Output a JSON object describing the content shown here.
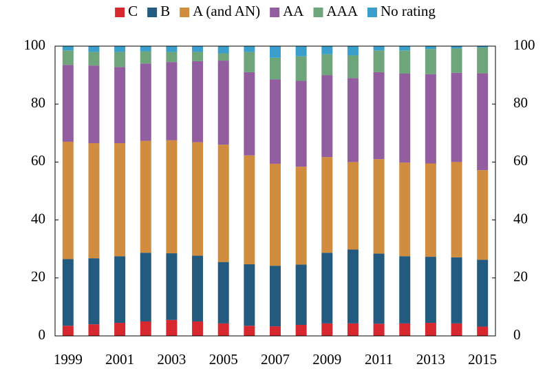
{
  "chart_data": {
    "type": "stacked_bar",
    "categories": [
      "1999",
      null,
      "2001",
      null,
      "2003",
      null,
      "2005",
      null,
      "2007",
      null,
      "2009",
      null,
      "2011",
      null,
      "2013",
      null,
      "2015"
    ],
    "series": [
      {
        "name": "C",
        "color": "#d7282f",
        "values": [
          3.5,
          4,
          4.5,
          5,
          5.5,
          5,
          4.3,
          3.5,
          3.3,
          3.8,
          4.3,
          4.3,
          4.2,
          4.3,
          4.5,
          4.3,
          3.2
        ]
      },
      {
        "name": "B",
        "color": "#225b7f",
        "values": [
          23,
          22.8,
          23,
          23.7,
          23,
          22.7,
          21.2,
          21.2,
          20.9,
          20.8,
          24.4,
          25.5,
          24.2,
          23.2,
          22.8,
          22.8,
          23.1
        ]
      },
      {
        "name": "A (and AN)",
        "color": "#d08c3f",
        "values": [
          40.5,
          39.7,
          39,
          38.6,
          39,
          39.1,
          40.5,
          37.6,
          35.2,
          33.8,
          33,
          30.2,
          32.6,
          32.3,
          32.2,
          32.9,
          30.9
        ]
      },
      {
        "name": "AA",
        "color": "#925e9f",
        "values": [
          26.5,
          26.8,
          26.3,
          26.7,
          27,
          28,
          29,
          28.7,
          29.1,
          29.6,
          28.3,
          29,
          30,
          30.7,
          30.8,
          30.8,
          33.4
        ]
      },
      {
        "name": "AAA",
        "color": "#6ea57b",
        "values": [
          5,
          4.7,
          5.2,
          4.2,
          3.5,
          3.2,
          2.5,
          7,
          7.5,
          8.5,
          7.2,
          7.8,
          7.5,
          8,
          8.7,
          8.4,
          8.9
        ]
      },
      {
        "name": "No rating",
        "color": "#3a9fcc",
        "values": [
          1.5,
          2,
          2,
          1.8,
          2,
          2,
          2.5,
          2,
          4,
          3.5,
          2.8,
          3.2,
          1.5,
          1.5,
          1,
          0.8,
          0.5
        ]
      }
    ],
    "ylim": [
      0,
      100
    ],
    "yticks": [
      0,
      20,
      40,
      60,
      80,
      100
    ],
    "y2lim": [
      0,
      100
    ],
    "y2ticks": [
      0,
      20,
      40,
      60,
      80,
      100
    ],
    "legend": "top"
  }
}
